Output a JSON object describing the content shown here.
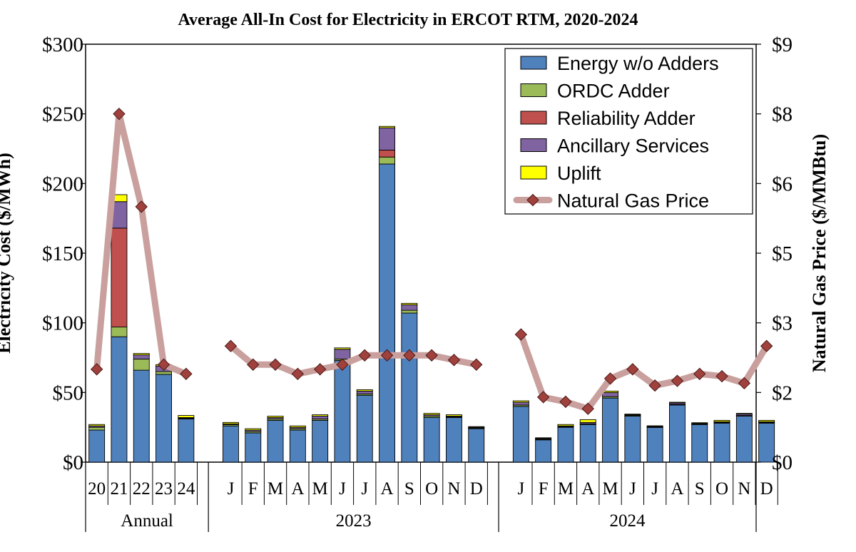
{
  "chart_data": {
    "type": "bar",
    "subtype": "stacked-bar-with-line",
    "title": "Average All-In Cost for Electricity in ERCOT RTM, 2020-2024",
    "ylabel": "Electricity Cost ($/MWh)",
    "y2label": "Natural Gas Price ($/MMBtu)",
    "ylim": [
      0,
      300
    ],
    "y2lim": [
      0,
      9
    ],
    "yticks": [
      "$0",
      "$50",
      "$100",
      "$150",
      "$200",
      "$250",
      "$300"
    ],
    "y2ticks": [
      "$0",
      "$2",
      "$3",
      "$5",
      "$6",
      "$8",
      "$9"
    ],
    "grid": false,
    "legend_position": "top-right",
    "groups": [
      {
        "label": "Annual",
        "categories": [
          "20",
          "21",
          "22",
          "23",
          "24"
        ]
      },
      {
        "label": "2023",
        "categories": [
          "J",
          "F",
          "M",
          "A",
          "M",
          "J",
          "J",
          "A",
          "S",
          "O",
          "N",
          "D"
        ]
      },
      {
        "label": "2024",
        "categories": [
          "J",
          "F",
          "M",
          "A",
          "M",
          "J",
          "J",
          "A",
          "S",
          "O",
          "N",
          "D"
        ]
      }
    ],
    "series": [
      {
        "name": "Energy w/o Adders",
        "color": "#4f81bd",
        "values": [
          23,
          90,
          66,
          63,
          31,
          26,
          21,
          30,
          23,
          30,
          73,
          48,
          214,
          107,
          32,
          32,
          24,
          40,
          16,
          25,
          27,
          46,
          33,
          25,
          41,
          27,
          28,
          33,
          28
        ]
      },
      {
        "name": "ORDC Adder",
        "color": "#9bbb59",
        "values": [
          2,
          7,
          8,
          2,
          0.5,
          1,
          1,
          1,
          1,
          1,
          1,
          1,
          5,
          2,
          1,
          0.5,
          0.5,
          1,
          0.5,
          0.5,
          0.5,
          1,
          0.5,
          0.3,
          0.5,
          0.5,
          0.5,
          0.5,
          0.5
        ]
      },
      {
        "name": "Reliability Adder",
        "color": "#c0504d",
        "values": [
          0,
          71,
          0,
          0,
          0,
          0,
          0,
          0,
          0,
          0,
          0,
          0,
          5,
          0,
          0,
          0,
          0,
          0,
          0,
          0,
          0,
          0,
          0,
          0,
          0,
          0,
          0,
          0,
          0
        ]
      },
      {
        "name": "Ancillary Services",
        "color": "#8064a2",
        "values": [
          1,
          19,
          3,
          4,
          0.5,
          0.5,
          1,
          1,
          1,
          2,
          7,
          2,
          16,
          4,
          1,
          0.5,
          0.5,
          2,
          0.5,
          0.5,
          1,
          3,
          0.5,
          0.3,
          1,
          0.3,
          0.5,
          1,
          0.5
        ]
      },
      {
        "name": "Uplift",
        "color": "#ffff00",
        "values": [
          1,
          5,
          1,
          1,
          1.5,
          1,
          1,
          1,
          1,
          1,
          1,
          1,
          1,
          1,
          1,
          1,
          0.5,
          1,
          0.5,
          1,
          2,
          1,
          0.5,
          0.5,
          0.5,
          0.5,
          1,
          0.5,
          1
        ]
      },
      {
        "name": "Natural Gas Price",
        "type": "line",
        "axis": "y2",
        "color": "#c9a09d",
        "marker_color": "#a0413d",
        "values": [
          2.0,
          7.5,
          5.5,
          2.1,
          1.9,
          2.5,
          2.1,
          2.1,
          1.9,
          2.0,
          2.1,
          2.3,
          2.3,
          2.3,
          2.3,
          2.2,
          2.1,
          2.75,
          1.4,
          1.3,
          1.15,
          1.8,
          2.0,
          1.65,
          1.75,
          1.9,
          1.85,
          1.7,
          2.5
        ]
      }
    ]
  }
}
